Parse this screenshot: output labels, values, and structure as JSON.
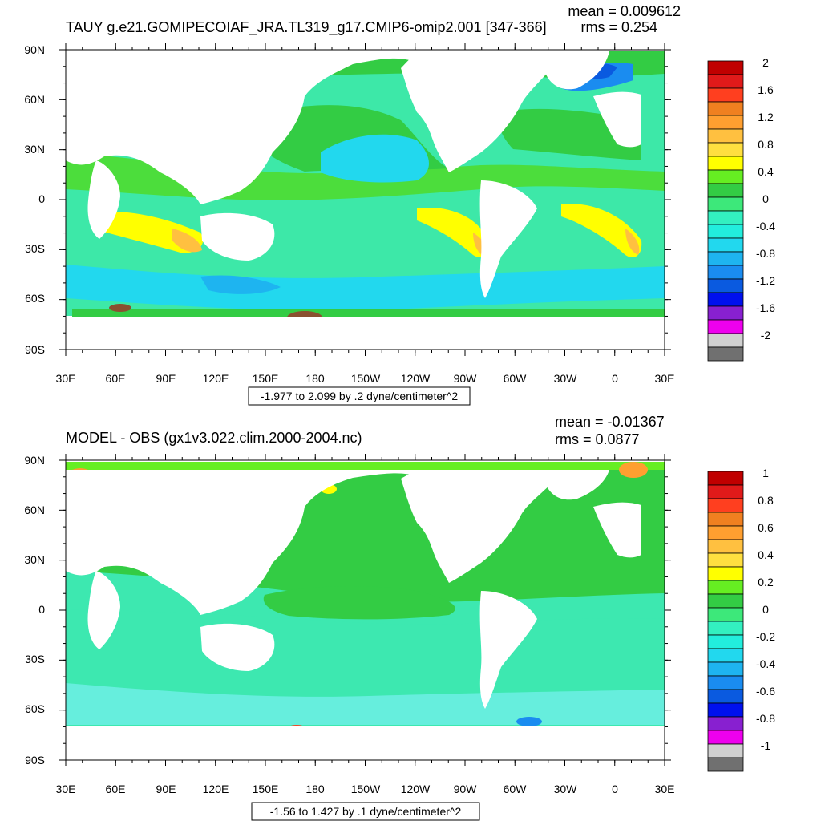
{
  "chart_data": [
    {
      "type": "heatmap",
      "title": "TAUY g.e21.GOMIPECOIAF_JRA.TL319_g17.CMIP6-omip2.001 [347-366]",
      "stats": {
        "mean": "mean = 0.009612",
        "rms": "rms = 0.254"
      },
      "units_label": "-1.977 to 2.099 by .2 dyne/centimeter^2",
      "xlabel": "",
      "ylabel": "",
      "x_ticks": [
        "30E",
        "60E",
        "90E",
        "120E",
        "150E",
        "180",
        "150W",
        "120W",
        "90W",
        "60W",
        "30W",
        "0",
        "30E"
      ],
      "y_ticks": [
        "90N",
        "60N",
        "30N",
        "0",
        "30S",
        "60S",
        "90S"
      ],
      "ylim": [
        -90,
        90
      ],
      "colorbar": {
        "labels": [
          "2",
          "1.6",
          "1.2",
          "0.8",
          "0.4",
          "0",
          "-0.4",
          "-0.8",
          "-1.2",
          "-1.6",
          "-2"
        ],
        "colors": [
          "#c00000",
          "#e01a1a",
          "#ff3f1f",
          "#f08020",
          "#ff9f30",
          "#ffc040",
          "#ffdf40",
          "#ffff00",
          "#66ee22",
          "#33cc44",
          "#3de87a",
          "#33f0c0",
          "#22eedd",
          "#22d8ee",
          "#1eb4f0",
          "#1a8cf0",
          "#0a5ae0",
          "#0010ee",
          "#8820d0",
          "#ee00ee",
          "#d0d0d0",
          "#707070"
        ]
      }
    },
    {
      "type": "heatmap",
      "title": "MODEL - OBS (gx1v3.022.clim.2000-2004.nc)",
      "stats": {
        "mean": "mean = -0.01367",
        "rms": "rms = 0.0877"
      },
      "units_label": "-1.56 to 1.427 by .1 dyne/centimeter^2",
      "xlabel": "",
      "ylabel": "",
      "x_ticks": [
        "30E",
        "60E",
        "90E",
        "120E",
        "150E",
        "180",
        "150W",
        "120W",
        "90W",
        "60W",
        "30W",
        "0",
        "30E"
      ],
      "y_ticks": [
        "90N",
        "60N",
        "30N",
        "0",
        "30S",
        "60S",
        "90S"
      ],
      "ylim": [
        -90,
        90
      ],
      "colorbar": {
        "labels": [
          "1",
          "0.8",
          "0.6",
          "0.4",
          "0.2",
          "0",
          "-0.2",
          "-0.4",
          "-0.6",
          "-0.8",
          "-1"
        ],
        "colors": [
          "#c00000",
          "#e01a1a",
          "#ff3f1f",
          "#f08020",
          "#ff9f30",
          "#ffc040",
          "#ffdf40",
          "#ffff00",
          "#66ee22",
          "#33cc44",
          "#3de87a",
          "#33f0c0",
          "#22eedd",
          "#22d8ee",
          "#1eb4f0",
          "#1a8cf0",
          "#0a5ae0",
          "#0010ee",
          "#8820d0",
          "#ee00ee",
          "#d0d0d0",
          "#707070"
        ]
      }
    }
  ]
}
